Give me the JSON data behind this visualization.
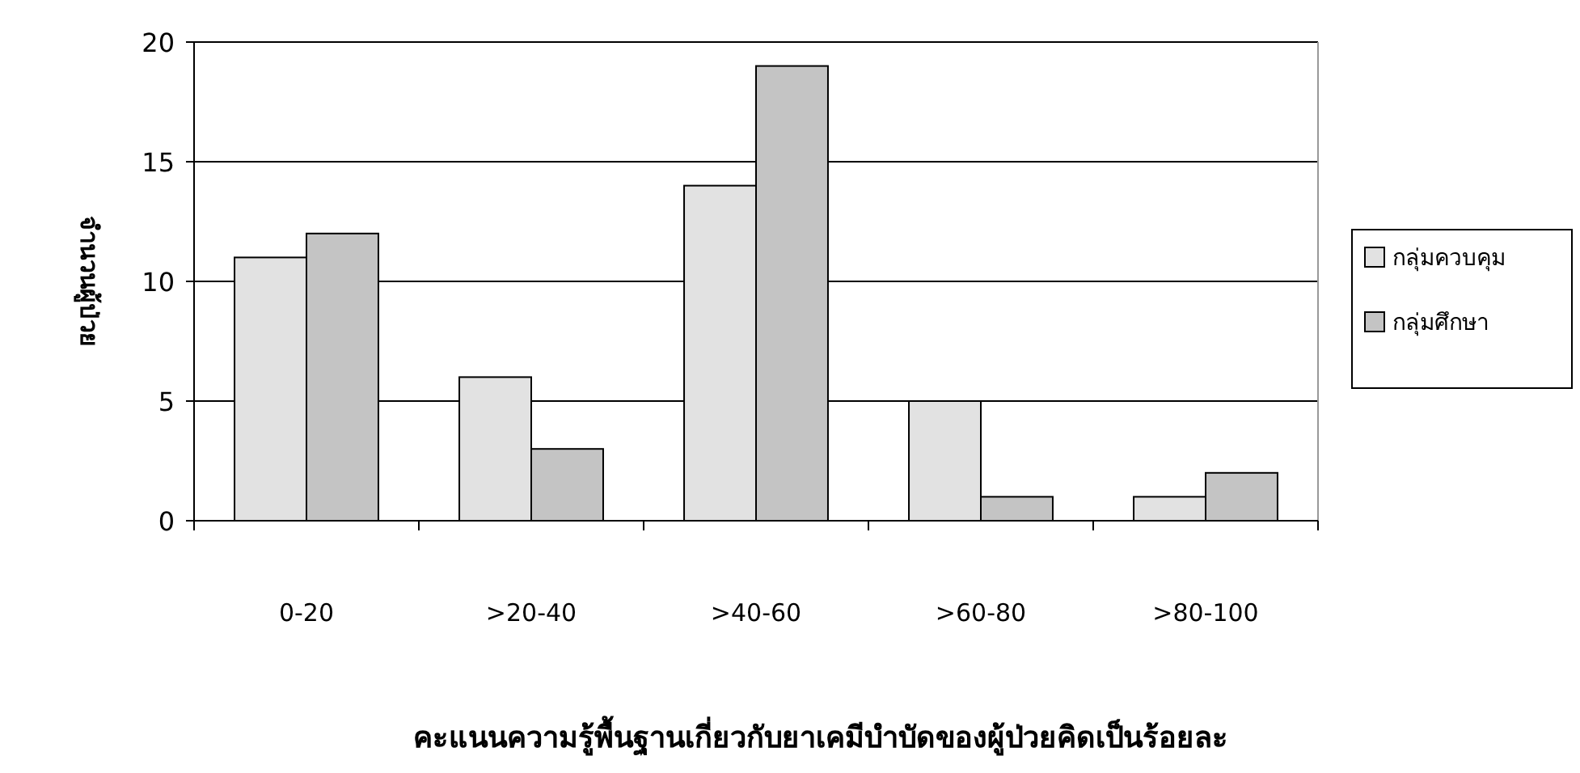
{
  "chart_data": {
    "type": "bar",
    "xlabel": "คะแนนความรู้พื้นฐานเกี่ยวกับยาเคมีบำบัดของผู้ป่วยคิดเป็นร้อยละ",
    "ylabel": "จำนวนผู้ป่วย",
    "categories": [
      "0-20",
      ">20-40",
      ">40-60",
      ">60-80",
      ">80-100"
    ],
    "series": [
      {
        "name": "กลุ่มควบคุม",
        "color": "#e2e2e2",
        "values": [
          11,
          6,
          14,
          5,
          1
        ]
      },
      {
        "name": "กลุ่มศึกษา",
        "color": "#c4c4c4",
        "values": [
          12,
          3,
          19,
          1,
          2
        ]
      }
    ],
    "ylim": [
      0,
      20
    ],
    "yticks": [
      0,
      5,
      10,
      15,
      20
    ],
    "grid": "y",
    "legend": "right"
  }
}
